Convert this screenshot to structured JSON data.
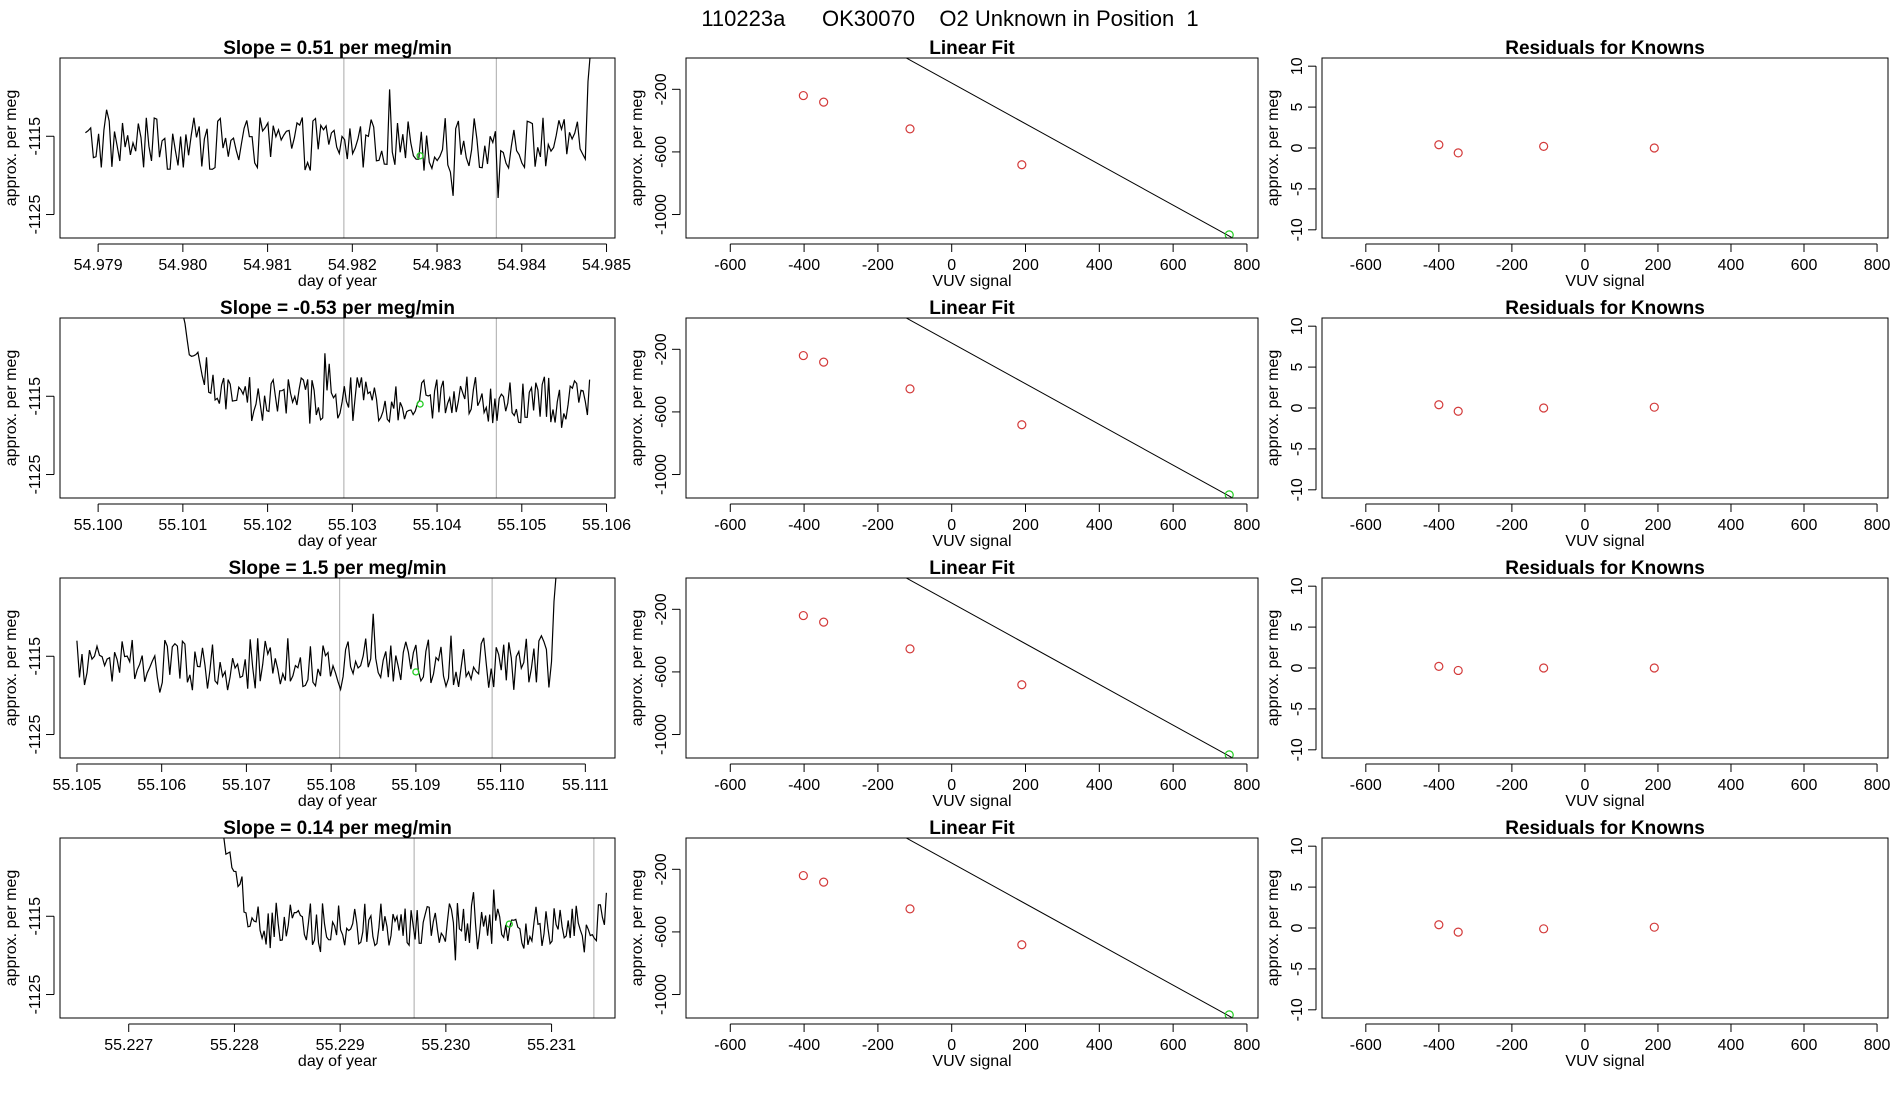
{
  "figure": {
    "title": "110223a      OK30070    O2 Unknown in Position  1"
  },
  "chart_data": [
    {
      "type": "line",
      "panel": "timeseries",
      "row": 1,
      "title": "Slope =  0.51  per meg/min",
      "xlabel": "day of year",
      "ylabel": "approx. per meg",
      "xlim": [
        54.97855,
        54.9851
      ],
      "ylim": [
        -1128,
        -1105
      ],
      "xticks": [
        "54.979",
        "54.980",
        "54.981",
        "54.982",
        "54.983",
        "54.984",
        "54.985"
      ],
      "yticks": [
        "-1125",
        "-1115"
      ],
      "vlines": [
        54.9819,
        54.9837
      ],
      "highlight": {
        "x": 54.9828,
        "y": -1117.5
      },
      "series": [
        {
          "name": "trace",
          "start": 54.97885,
          "end": 54.98475,
          "level": -1116,
          "amp": 3.4,
          "end_rise": [
            -1108,
            -1104
          ],
          "start_extra": null
        }
      ]
    },
    {
      "type": "line",
      "panel": "fit",
      "row": 1,
      "title": "Linear Fit",
      "xlabel": "VUV signal",
      "ylabel": "approx. per meg",
      "xlim": [
        -720,
        830
      ],
      "ylim": [
        -1150,
        0
      ],
      "xticks": [
        "-600",
        "-400",
        "-200",
        "0",
        "200",
        "400",
        "600",
        "800"
      ],
      "yticks": [
        "-1000",
        "-600",
        "-200"
      ],
      "line": {
        "slope": -1.3,
        "intercept": -160,
        "x_range": [
          -665,
          760
        ]
      },
      "points": [
        {
          "x": -402,
          "y": -240
        },
        {
          "x": -347,
          "y": -282
        },
        {
          "x": -113,
          "y": -453
        },
        {
          "x": 190,
          "y": -682
        }
      ],
      "unknown": {
        "x": 752,
        "y": -1130
      }
    },
    {
      "type": "scatter",
      "panel": "residuals",
      "row": 1,
      "title": "Residuals for Knowns",
      "xlabel": "VUV signal",
      "ylabel": "approx. per meg",
      "xlim": [
        -720,
        830
      ],
      "ylim": [
        -11,
        11
      ],
      "xticks": [
        "-600",
        "-400",
        "-200",
        "0",
        "200",
        "400",
        "600",
        "800"
      ],
      "yticks": [
        "-10",
        "-5",
        "0",
        "5",
        "10"
      ],
      "points": [
        {
          "x": -400,
          "y": 0.4
        },
        {
          "x": -347,
          "y": -0.6
        },
        {
          "x": -113,
          "y": 0.2
        },
        {
          "x": 190,
          "y": 0.0
        }
      ]
    },
    {
      "type": "line",
      "panel": "timeseries",
      "row": 2,
      "title": "Slope =  -0.53  per meg/min",
      "xlabel": "day of year",
      "ylabel": "approx. per meg",
      "xlim": [
        55.09955,
        55.1061
      ],
      "ylim": [
        -1128,
        -1105
      ],
      "xticks": [
        "55.100",
        "55.101",
        "55.102",
        "55.103",
        "55.104",
        "55.105",
        "55.106"
      ],
      "yticks": [
        "-1125",
        "-1115"
      ],
      "vlines": [
        55.1029,
        55.1047
      ],
      "highlight": {
        "x": 55.1038,
        "y": -1116
      },
      "series": [
        {
          "name": "trace",
          "start": 55.101,
          "end": 55.1058,
          "level": -1115.5,
          "amp": 3.0,
          "end_rise": null,
          "start_extra": [
            -1106,
            -1109
          ]
        }
      ]
    },
    {
      "type": "line",
      "panel": "fit",
      "row": 2,
      "title": "Linear Fit",
      "xlabel": "VUV signal",
      "ylabel": "approx. per meg",
      "xlim": [
        -720,
        830
      ],
      "ylim": [
        -1150,
        0
      ],
      "xticks": [
        "-600",
        "-400",
        "-200",
        "0",
        "200",
        "400",
        "600",
        "800"
      ],
      "yticks": [
        "-1000",
        "-600",
        "-200"
      ],
      "line": {
        "slope": -1.3,
        "intercept": -160,
        "x_range": [
          -665,
          760
        ]
      },
      "points": [
        {
          "x": -402,
          "y": -240
        },
        {
          "x": -347,
          "y": -282
        },
        {
          "x": -113,
          "y": -453
        },
        {
          "x": 190,
          "y": -682
        }
      ],
      "unknown": {
        "x": 752,
        "y": -1130
      }
    },
    {
      "type": "scatter",
      "panel": "residuals",
      "row": 2,
      "title": "Residuals for Knowns",
      "xlabel": "VUV signal",
      "ylabel": "approx. per meg",
      "xlim": [
        -720,
        830
      ],
      "ylim": [
        -11,
        11
      ],
      "xticks": [
        "-600",
        "-400",
        "-200",
        "0",
        "200",
        "400",
        "600",
        "800"
      ],
      "yticks": [
        "-10",
        "-5",
        "0",
        "5",
        "10"
      ],
      "points": [
        {
          "x": -400,
          "y": 0.4
        },
        {
          "x": -347,
          "y": -0.4
        },
        {
          "x": -113,
          "y": 0.0
        },
        {
          "x": 190,
          "y": 0.1
        }
      ]
    },
    {
      "type": "line",
      "panel": "timeseries",
      "row": 3,
      "title": "Slope =  1.5  per meg/min",
      "xlabel": "day of year",
      "ylabel": "approx. per meg",
      "xlim": [
        55.1048,
        55.11135
      ],
      "ylim": [
        -1128,
        -1105
      ],
      "xticks": [
        "55.105",
        "55.106",
        "55.107",
        "55.108",
        "55.109",
        "55.110",
        "55.111"
      ],
      "yticks": [
        "-1125",
        "-1115"
      ],
      "vlines": [
        55.1081,
        55.1099
      ],
      "highlight": {
        "x": 55.109,
        "y": -1117
      },
      "series": [
        {
          "name": "trace",
          "start": 55.105,
          "end": 55.1106,
          "level": -1116,
          "amp": 3.4,
          "end_rise": [
            -1108,
            -1104
          ],
          "start_extra": null
        }
      ]
    },
    {
      "type": "line",
      "panel": "fit",
      "row": 3,
      "title": "Linear Fit",
      "xlabel": "VUV signal",
      "ylabel": "approx. per meg",
      "xlim": [
        -720,
        830
      ],
      "ylim": [
        -1150,
        0
      ],
      "xticks": [
        "-600",
        "-400",
        "-200",
        "0",
        "200",
        "400",
        "600",
        "800"
      ],
      "yticks": [
        "-1000",
        "-600",
        "-200"
      ],
      "line": {
        "slope": -1.3,
        "intercept": -160,
        "x_range": [
          -665,
          760
        ]
      },
      "points": [
        {
          "x": -402,
          "y": -240
        },
        {
          "x": -347,
          "y": -282
        },
        {
          "x": -113,
          "y": -453
        },
        {
          "x": 190,
          "y": -682
        }
      ],
      "unknown": {
        "x": 752,
        "y": -1130
      }
    },
    {
      "type": "scatter",
      "panel": "residuals",
      "row": 3,
      "title": "Residuals for Knowns",
      "xlabel": "VUV signal",
      "ylabel": "approx. per meg",
      "xlim": [
        -720,
        830
      ],
      "ylim": [
        -11,
        11
      ],
      "xticks": [
        "-600",
        "-400",
        "-200",
        "0",
        "200",
        "400",
        "600",
        "800"
      ],
      "yticks": [
        "-10",
        "-5",
        "0",
        "5",
        "10"
      ],
      "points": [
        {
          "x": -400,
          "y": 0.2
        },
        {
          "x": -347,
          "y": -0.3
        },
        {
          "x": -113,
          "y": 0.0
        },
        {
          "x": 190,
          "y": 0.0
        }
      ]
    },
    {
      "type": "line",
      "panel": "timeseries",
      "row": 4,
      "title": "Slope =  0.14  per meg/min",
      "xlabel": "day of year",
      "ylabel": "approx. per meg",
      "xlim": [
        55.22635,
        55.2316
      ],
      "ylim": [
        -1128,
        -1105
      ],
      "xticks": [
        "55.227",
        "55.228",
        "55.229",
        "55.230",
        "55.231"
      ],
      "yticks": [
        "-1125",
        "-1115"
      ],
      "vlines": [
        55.2297,
        55.2314
      ],
      "highlight": {
        "x": 55.2306,
        "y": -1116
      },
      "series": [
        {
          "name": "trace",
          "start": 55.2279,
          "end": 55.2315,
          "level": -1116,
          "amp": 2.8,
          "end_rise": [
            -1112
          ],
          "start_extra": [
            -1105,
            -1107
          ]
        }
      ]
    },
    {
      "type": "line",
      "panel": "fit",
      "row": 4,
      "title": "Linear Fit",
      "xlabel": "VUV signal",
      "ylabel": "approx. per meg",
      "xlim": [
        -720,
        830
      ],
      "ylim": [
        -1150,
        0
      ],
      "xticks": [
        "-600",
        "-400",
        "-200",
        "0",
        "200",
        "400",
        "600",
        "800"
      ],
      "yticks": [
        "-1000",
        "-600",
        "-200"
      ],
      "line": {
        "slope": -1.3,
        "intercept": -160,
        "x_range": [
          -665,
          760
        ]
      },
      "points": [
        {
          "x": -402,
          "y": -240
        },
        {
          "x": -347,
          "y": -282
        },
        {
          "x": -113,
          "y": -453
        },
        {
          "x": 190,
          "y": -682
        }
      ],
      "unknown": {
        "x": 752,
        "y": -1130
      }
    },
    {
      "type": "scatter",
      "panel": "residuals",
      "row": 4,
      "title": "Residuals for Knowns",
      "xlabel": "VUV signal",
      "ylabel": "approx. per meg",
      "xlim": [
        -720,
        830
      ],
      "ylim": [
        -11,
        11
      ],
      "xticks": [
        "-600",
        "-400",
        "-200",
        "0",
        "200",
        "400",
        "600",
        "800"
      ],
      "yticks": [
        "-10",
        "-5",
        "0",
        "5",
        "10"
      ],
      "points": [
        {
          "x": -400,
          "y": 0.4
        },
        {
          "x": -347,
          "y": -0.5
        },
        {
          "x": -113,
          "y": -0.1
        },
        {
          "x": 190,
          "y": 0.1
        }
      ]
    }
  ],
  "colors": {
    "line": "#000000",
    "known": "#d33a3a",
    "unknown": "#22cc22",
    "vline": "#b8b8b8",
    "frame": "#000000"
  }
}
